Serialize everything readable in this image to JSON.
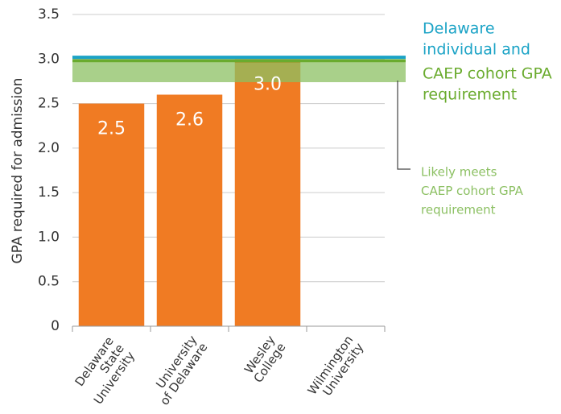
{
  "chart_data": {
    "type": "bar",
    "y_axis_label": "GPA required for admission",
    "categories": [
      "Delaware\nState\nUniversity",
      "University\nof Delaware",
      "Wesley\nCollege",
      "Wilmington\nUniversity"
    ],
    "values": [
      2.5,
      2.6,
      3.0,
      null
    ],
    "value_labels": [
      "2.5",
      "2.6",
      "3.0",
      null
    ],
    "color": "#f07b23",
    "ylim": [
      0,
      3.5
    ],
    "yticks": [
      0,
      0.5,
      {
        "value": 1,
        "label": "1.0"
      },
      1.5,
      {
        "value": 2,
        "label": "2.0"
      },
      2.5,
      {
        "value": 3,
        "label": "3.0"
      },
      3.5
    ],
    "grid": true,
    "reference_lines": [
      {
        "value": 3.02,
        "color": "#1ba3c6"
      },
      {
        "value": 2.98,
        "color": "#6aab2e"
      }
    ],
    "reference_band": {
      "range": [
        2.74,
        2.96
      ],
      "color": "#8cc063"
    },
    "annotations": [
      {
        "lines": [
          "Delaware",
          "individual and"
        ],
        "color": "#1ba3c6"
      },
      {
        "lines": [
          "CAEP cohort GPA",
          "requirement"
        ],
        "color": "#6aab2e"
      },
      {
        "lines": [
          "Likely meets",
          "CAEP cohort GPA",
          "requirement"
        ],
        "color": "#8cc063"
      }
    ]
  }
}
